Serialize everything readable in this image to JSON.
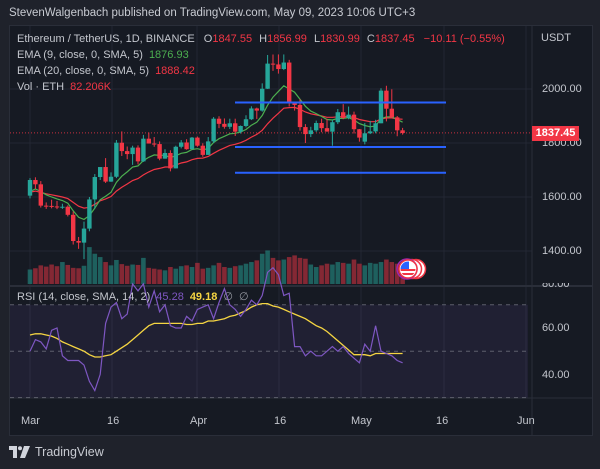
{
  "header": {
    "published": "StevenWalgenbach published on TradingView.com, May 09, 2023 10:06 UTC+3"
  },
  "symbol": {
    "title": "Ethereum / TetherUS, 1D, BINANCE",
    "open_label": "O",
    "open": "1847.55",
    "high_label": "H",
    "high": "1856.99",
    "low_label": "L",
    "low": "1830.99",
    "close_label": "C",
    "close": "1837.45",
    "change": "−10.11 (−0.55%)",
    "currency": "USDT",
    "last_price_tag": "1837.45"
  },
  "indicators": {
    "ema9": {
      "label": "EMA (9, close, 0, SMA, 5)",
      "value": "1876.93",
      "color": "#4caf50"
    },
    "ema20": {
      "label": "EMA (20, close, 0, SMA, 5)",
      "value": "1888.42",
      "color": "#f23645"
    },
    "vol": {
      "label": "Vol · ETH",
      "value": "82.206K"
    },
    "rsi": {
      "label": "RSI (14, close, SMA, 14, 2)",
      "value": "45.28",
      "sma_value": "49.18",
      "extra1": "∅",
      "extra2": "∅",
      "color": "#7e57c2",
      "sma_color": "#f5d542"
    }
  },
  "price_axis": {
    "ticks": [
      "2000.00",
      "1800.00",
      "1600.00",
      "1400.00"
    ],
    "rsi_ticks": [
      "80.00",
      "60.00",
      "40.00"
    ]
  },
  "time_axis": {
    "ticks": [
      "Mar",
      "16",
      "Apr",
      "16",
      "May",
      "16",
      "Jun"
    ]
  },
  "branding": {
    "name": "TradingView"
  },
  "colors": {
    "up": "#26a69a",
    "down": "#f23645",
    "hline": "#2962ff",
    "background": "#161a23"
  },
  "chart_data": {
    "type": "candlestick",
    "title": "Ethereum / TetherUS, 1D, BINANCE",
    "ylabel": "USDT",
    "ylim": [
      1330,
      2220
    ],
    "horizontal_lines": [
      1950,
      1785,
      1690
    ],
    "dates": [
      "Mar 1",
      "Mar 2",
      "Mar 3",
      "Mar 4",
      "Mar 5",
      "Mar 6",
      "Mar 7",
      "Mar 8",
      "Mar 9",
      "Mar 10",
      "Mar 11",
      "Mar 12",
      "Mar 13",
      "Mar 14",
      "Mar 15",
      "Mar 16",
      "Mar 17",
      "Mar 18",
      "Mar 19",
      "Mar 20",
      "Mar 21",
      "Mar 22",
      "Mar 23",
      "Mar 24",
      "Mar 25",
      "Mar 26",
      "Mar 27",
      "Mar 28",
      "Mar 29",
      "Mar 30",
      "Mar 31",
      "Apr 1",
      "Apr 2",
      "Apr 3",
      "Apr 4",
      "Apr 5",
      "Apr 6",
      "Apr 7",
      "Apr 8",
      "Apr 9",
      "Apr 10",
      "Apr 11",
      "Apr 12",
      "Apr 13",
      "Apr 14",
      "Apr 15",
      "Apr 16",
      "Apr 17",
      "Apr 18",
      "Apr 19",
      "Apr 20",
      "Apr 21",
      "Apr 22",
      "Apr 23",
      "Apr 24",
      "Apr 25",
      "Apr 26",
      "Apr 27",
      "Apr 28",
      "Apr 29",
      "Apr 30",
      "May 1",
      "May 2",
      "May 3",
      "May 4",
      "May 5",
      "May 6",
      "May 7",
      "May 8",
      "May 9"
    ],
    "open": [
      1605,
      1663,
      1647,
      1568,
      1567,
      1565,
      1563,
      1564,
      1534,
      1437,
      1431,
      1483,
      1591,
      1674,
      1711,
      1657,
      1675,
      1801,
      1770,
      1759,
      1783,
      1732,
      1816,
      1798,
      1796,
      1742,
      1763,
      1706,
      1786,
      1802,
      1777,
      1820,
      1790,
      1756,
      1806,
      1890,
      1871,
      1860,
      1873,
      1842,
      1863,
      1888,
      1928,
      1920,
      2001,
      2094,
      2091,
      2074,
      2098,
      1951,
      1941,
      1859,
      1833,
      1847,
      1874,
      1855,
      1842,
      1877,
      1914,
      1893,
      1905,
      1851,
      1805,
      1836,
      1843,
      1873,
      1994,
      1927,
      1895,
      1847
    ],
    "high": [
      1670,
      1673,
      1659,
      1580,
      1590,
      1585,
      1575,
      1569,
      1546,
      1452,
      1509,
      1600,
      1685,
      1705,
      1744,
      1691,
      1811,
      1843,
      1787,
      1790,
      1791,
      1830,
      1839,
      1822,
      1806,
      1777,
      1773,
      1790,
      1811,
      1814,
      1822,
      1824,
      1799,
      1822,
      1896,
      1899,
      1891,
      1890,
      1890,
      1865,
      1903,
      1936,
      1931,
      2021,
      2126,
      2128,
      2128,
      2128,
      2108,
      1950,
      1962,
      1870,
      1860,
      1883,
      1890,
      1890,
      1886,
      1926,
      1944,
      1935,
      1916,
      1852,
      1874,
      1882,
      1886,
      2003,
      2012,
      1999,
      1900,
      1856
    ],
    "low": [
      1595,
      1630,
      1561,
      1556,
      1558,
      1555,
      1556,
      1528,
      1424,
      1408,
      1370,
      1473,
      1557,
      1663,
      1652,
      1656,
      1670,
      1752,
      1740,
      1719,
      1721,
      1730,
      1798,
      1786,
      1736,
      1742,
      1695,
      1706,
      1780,
      1775,
      1776,
      1786,
      1749,
      1756,
      1800,
      1855,
      1853,
      1852,
      1826,
      1835,
      1858,
      1885,
      1889,
      1916,
      2000,
      2067,
      2057,
      2070,
      1935,
      1920,
      1846,
      1800,
      1822,
      1841,
      1840,
      1850,
      1790,
      1870,
      1888,
      1888,
      1835,
      1805,
      1795,
      1833,
      1836,
      1873,
      1880,
      1920,
      1825,
      1831
    ],
    "close": [
      1663,
      1647,
      1568,
      1567,
      1565,
      1563,
      1564,
      1534,
      1437,
      1431,
      1483,
      1591,
      1674,
      1711,
      1657,
      1675,
      1801,
      1770,
      1759,
      1783,
      1732,
      1816,
      1798,
      1796,
      1742,
      1763,
      1706,
      1786,
      1802,
      1777,
      1820,
      1790,
      1756,
      1806,
      1890,
      1871,
      1860,
      1873,
      1842,
      1863,
      1888,
      1928,
      1920,
      2001,
      2094,
      2091,
      2074,
      2098,
      1951,
      1941,
      1859,
      1833,
      1847,
      1874,
      1855,
      1842,
      1877,
      1914,
      1893,
      1905,
      1851,
      1820,
      1836,
      1843,
      1873,
      1994,
      1927,
      1895,
      1847,
      1837
    ],
    "ema9": [
      1620,
      1630,
      1620,
      1608,
      1600,
      1593,
      1587,
      1577,
      1549,
      1525,
      1517,
      1531,
      1559,
      1590,
      1603,
      1617,
      1654,
      1677,
      1693,
      1711,
      1715,
      1735,
      1747,
      1756,
      1754,
      1755,
      1746,
      1753,
      1762,
      1765,
      1776,
      1779,
      1774,
      1780,
      1802,
      1816,
      1825,
      1834,
      1836,
      1841,
      1850,
      1866,
      1877,
      1902,
      1940,
      1970,
      1991,
      2012,
      2000,
      1988,
      1962,
      1936,
      1918,
      1909,
      1898,
      1887,
      1885,
      1891,
      1891,
      1894,
      1885,
      1872,
      1865,
      1860,
      1863,
      1890,
      1897,
      1897,
      1887,
      1877
    ],
    "ema20": [
      1618,
      1622,
      1617,
      1612,
      1608,
      1604,
      1600,
      1594,
      1580,
      1566,
      1559,
      1562,
      1573,
      1586,
      1593,
      1602,
      1622,
      1636,
      1648,
      1661,
      1668,
      1682,
      1693,
      1702,
      1706,
      1711,
      1711,
      1718,
      1726,
      1730,
      1738,
      1743,
      1744,
      1750,
      1762,
      1773,
      1782,
      1791,
      1795,
      1801,
      1810,
      1822,
      1832,
      1847,
      1871,
      1892,
      1910,
      1929,
      1931,
      1932,
      1925,
      1915,
      1908,
      1904,
      1900,
      1895,
      1895,
      1897,
      1897,
      1898,
      1894,
      1887,
      1883,
      1879,
      1879,
      1889,
      1893,
      1893,
      1889,
      1888
    ],
    "volume": [
      330,
      345,
      380,
      365,
      390,
      370,
      420,
      385,
      350,
      345,
      375,
      600,
      520,
      480,
      420,
      380,
      445,
      395,
      375,
      390,
      385,
      470,
      350,
      340,
      330,
      320,
      360,
      340,
      370,
      380,
      360,
      410,
      340,
      350,
      380,
      410,
      360,
      350,
      370,
      380,
      400,
      420,
      440,
      520,
      560,
      470,
      440,
      450,
      480,
      500,
      470,
      460,
      390,
      360,
      380,
      400,
      390,
      420,
      410,
      400,
      450,
      400,
      380,
      410,
      400,
      420,
      450,
      420,
      400,
      380
    ],
    "rsi": [
      50,
      55,
      54,
      51,
      59,
      60,
      48,
      46,
      46,
      46,
      44,
      37,
      33,
      40,
      62,
      69,
      71,
      64,
      66,
      79,
      76,
      79,
      69,
      76,
      67,
      70,
      61,
      60,
      60,
      65,
      63,
      68,
      69,
      70,
      64,
      71,
      77,
      70,
      68,
      65,
      68,
      72,
      70,
      74,
      84,
      86,
      83,
      74,
      75,
      52,
      52,
      48,
      50,
      48,
      48,
      50,
      52,
      50,
      52,
      49,
      47,
      45,
      53,
      50,
      61,
      50,
      49,
      48,
      46,
      45
    ],
    "rsi_sma": [
      57,
      57.5,
      57.5,
      57,
      56.5,
      55.5,
      54,
      53,
      52,
      51,
      50,
      48.5,
      47.5,
      47.5,
      48,
      48.5,
      50,
      51.5,
      53,
      55,
      57,
      59,
      61,
      62,
      62,
      62,
      62,
      62,
      62,
      61.5,
      61.5,
      62,
      62,
      63,
      63,
      63.5,
      64,
      65,
      65.5,
      66.5,
      67.5,
      69,
      70,
      70.5,
      70.5,
      69.5,
      69,
      68,
      67,
      66,
      65,
      64,
      62.5,
      61,
      60,
      58.5,
      56.5,
      54.5,
      52.5,
      50.5,
      48.5,
      48.5,
      48.5,
      48,
      49,
      49,
      49,
      49,
      49,
      49
    ]
  }
}
